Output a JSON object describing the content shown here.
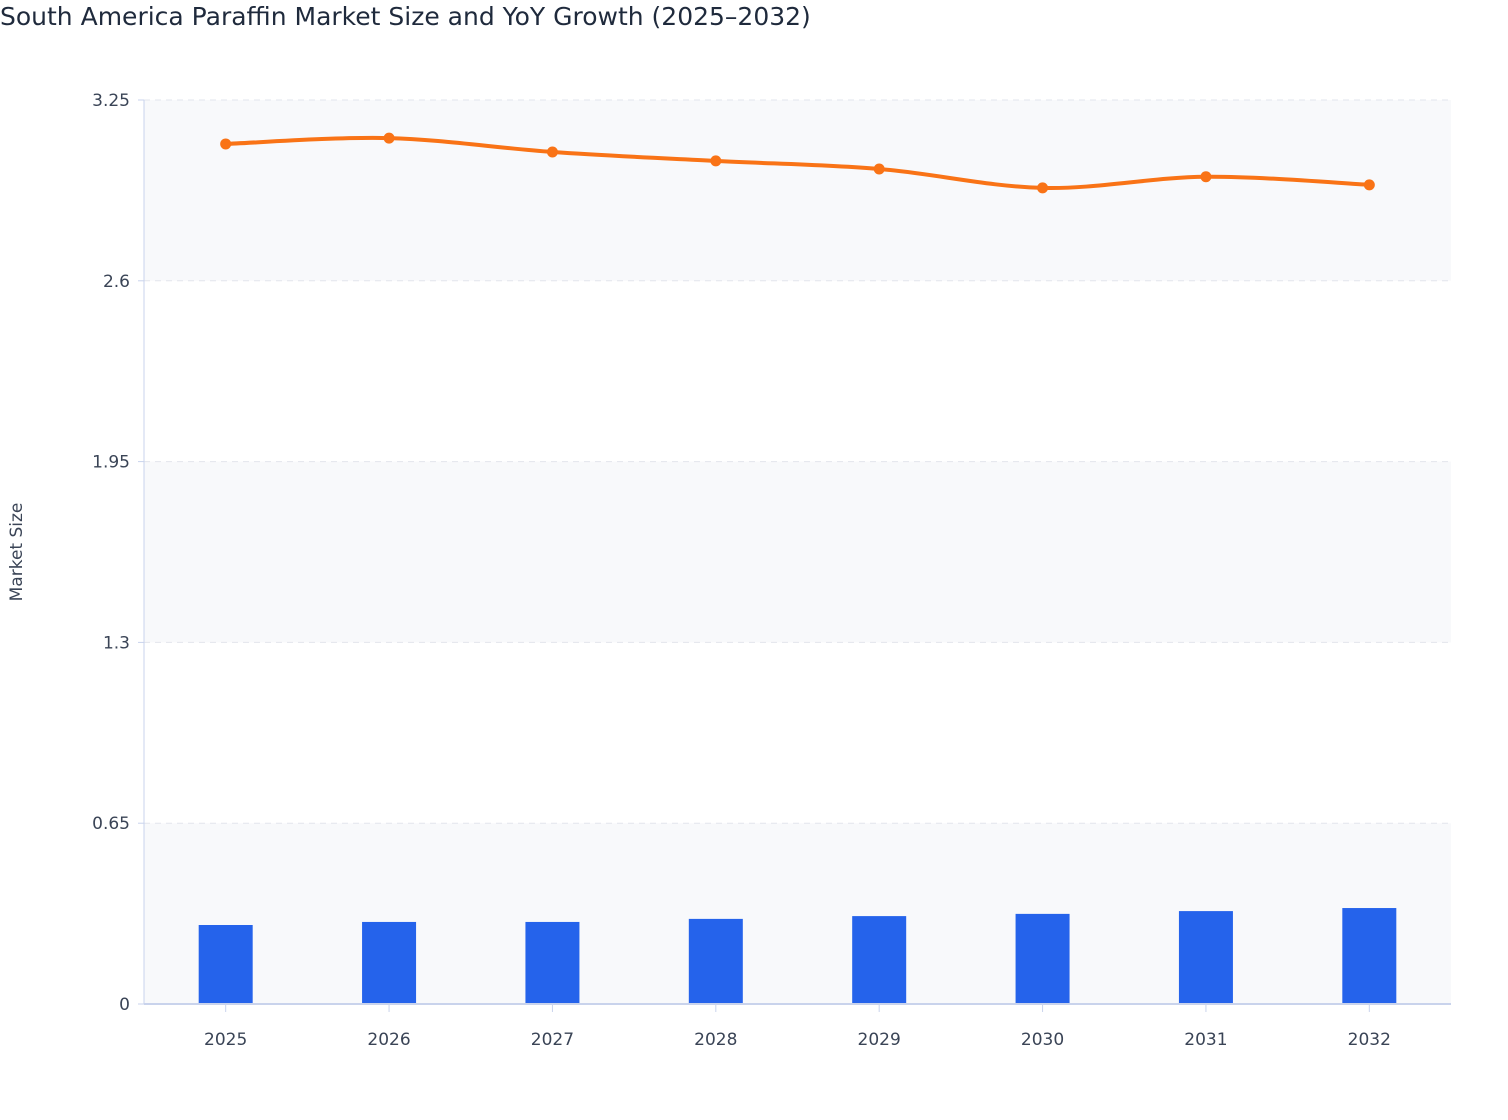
{
  "chart_data": {
    "type": "bar+line",
    "title": "South America Paraffin Market Size and YoY Growth (2025–2032)",
    "xlabel": "",
    "ylabel": "Market Size",
    "ylim": [
      0,
      3.25
    ],
    "yticks": [
      "0",
      "0.65",
      "1.3",
      "1.95",
      "2.6",
      "3.25"
    ],
    "categories": [
      "2025",
      "2026",
      "2027",
      "2028",
      "2029",
      "2030",
      "2031",
      "2032"
    ],
    "series": [
      {
        "type": "bar",
        "color": "#2563eb",
        "values": [
          0.284,
          0.295,
          0.295,
          0.306,
          0.316,
          0.324,
          0.334,
          0.345
        ]
      },
      {
        "type": "line",
        "color": "#f97316",
        "smooth": true,
        "values": [
          3.092,
          3.113,
          3.063,
          3.031,
          3.002,
          2.934,
          2.974,
          2.945
        ]
      }
    ],
    "grid": true
  }
}
